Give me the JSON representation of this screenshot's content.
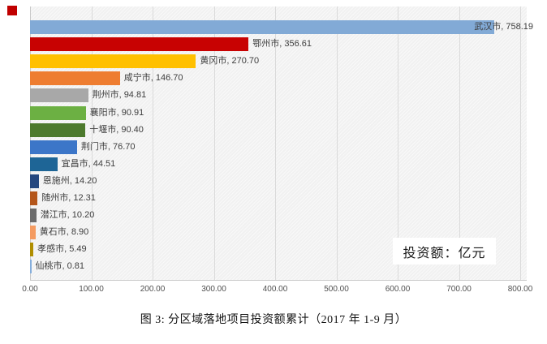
{
  "figure": {
    "marker_color": "#C00000",
    "unit_label": "投资额：亿元",
    "caption": "图 3: 分区域落地项目投资额累计（2017 年 1-9 月）"
  },
  "chart_data": {
    "type": "bar",
    "orientation": "horizontal",
    "title": "",
    "xlabel": "",
    "ylabel": "",
    "unit": "亿元",
    "xlim": [
      0,
      800
    ],
    "x_ticks": [
      "0.00",
      "100.00",
      "200.00",
      "300.00",
      "400.00",
      "500.00",
      "600.00",
      "700.00",
      "800.00"
    ],
    "grid": true,
    "legend_position": "none",
    "plot_background": "#F1F1F1",
    "gridline_color": "#DADADA",
    "categories": [
      "武汉市",
      "鄂州市",
      "黄冈市",
      "咸宁市",
      "荆州市",
      "襄阳市",
      "十堰市",
      "荆门市",
      "宜昌市",
      "恩施州",
      "随州市",
      "潜江市",
      "黄石市",
      "孝感市",
      "仙桃市"
    ],
    "values": [
      758.19,
      356.61,
      270.7,
      146.7,
      94.81,
      90.91,
      90.4,
      76.7,
      44.51,
      14.2,
      12.31,
      10.2,
      8.9,
      5.49,
      0.81
    ],
    "bar_colors": [
      "#82AAD6",
      "#C80202",
      "#FFC000",
      "#EE7D31",
      "#A8A8A8",
      "#6CB043",
      "#4D7A2D",
      "#3C76C8",
      "#1E6596",
      "#24477F",
      "#B4561B",
      "#6B6B6B",
      "#F49B61",
      "#B08E00",
      "#85AEDC"
    ],
    "data_labels": [
      "武汉市, 758.19",
      "鄂州市, 356.61",
      "黄冈市, 270.70",
      "咸宁市, 146.70",
      "荆州市, 94.81",
      "襄阳市, 90.91",
      "十堰市, 90.40",
      "荆门市, 76.70",
      "宜昌市, 44.51",
      "恩施州, 14.20",
      "随州市, 12.31",
      "潜江市, 10.20",
      "黄石市, 8.90",
      "孝感市, 5.49",
      "仙桃市, 0.81"
    ]
  }
}
